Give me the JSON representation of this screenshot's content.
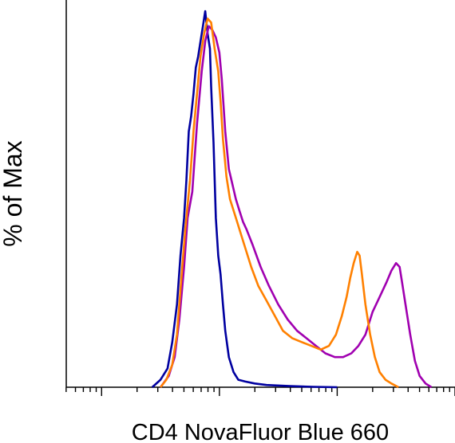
{
  "chart_data": {
    "type": "line",
    "xlabel": "CD4 NovaFluor Blue 660",
    "ylabel": "% of Max",
    "xscale": "log",
    "xticks_labeled": false,
    "yticks_labeled": false,
    "grid": false,
    "legend": "none",
    "series": [
      {
        "color": "#0000a0",
        "points": [
          [
            1.43,
            0
          ],
          [
            1.5,
            2
          ],
          [
            1.56,
            5
          ],
          [
            1.6,
            12
          ],
          [
            1.64,
            22
          ],
          [
            1.67,
            35
          ],
          [
            1.7,
            45
          ],
          [
            1.72,
            55
          ],
          [
            1.74,
            68
          ],
          [
            1.76,
            72
          ],
          [
            1.78,
            78
          ],
          [
            1.8,
            85
          ],
          [
            1.82,
            88
          ],
          [
            1.84,
            92
          ],
          [
            1.86,
            96
          ],
          [
            1.88,
            100
          ],
          [
            1.89,
            97
          ],
          [
            1.9,
            94
          ],
          [
            1.92,
            90
          ],
          [
            1.93,
            80
          ],
          [
            1.95,
            65
          ],
          [
            1.97,
            45
          ],
          [
            1.99,
            35
          ],
          [
            2.01,
            30
          ],
          [
            2.03,
            22
          ],
          [
            2.05,
            15
          ],
          [
            2.08,
            8
          ],
          [
            2.12,
            4
          ],
          [
            2.16,
            2
          ],
          [
            2.22,
            1.5
          ],
          [
            2.3,
            1
          ],
          [
            2.4,
            0.6
          ],
          [
            2.6,
            0.3
          ],
          [
            2.8,
            0.1
          ],
          [
            3.0,
            0
          ]
        ]
      },
      {
        "color": "#a000b0",
        "points": [
          [
            1.5,
            0
          ],
          [
            1.57,
            3
          ],
          [
            1.62,
            8
          ],
          [
            1.66,
            18
          ],
          [
            1.7,
            32
          ],
          [
            1.73,
            45
          ],
          [
            1.77,
            52
          ],
          [
            1.81,
            70
          ],
          [
            1.85,
            84
          ],
          [
            1.88,
            92
          ],
          [
            1.91,
            96
          ],
          [
            1.94,
            95
          ],
          [
            1.97,
            93
          ],
          [
            2.0,
            89
          ],
          [
            2.02,
            82
          ],
          [
            2.05,
            68
          ],
          [
            2.08,
            58
          ],
          [
            2.11,
            54
          ],
          [
            2.14,
            50
          ],
          [
            2.17,
            47
          ],
          [
            2.2,
            44
          ],
          [
            2.23,
            42
          ],
          [
            2.28,
            38
          ],
          [
            2.35,
            32
          ],
          [
            2.42,
            27
          ],
          [
            2.5,
            22
          ],
          [
            2.58,
            18
          ],
          [
            2.66,
            15
          ],
          [
            2.74,
            13
          ],
          [
            2.82,
            11
          ],
          [
            2.9,
            9
          ],
          [
            2.98,
            8
          ],
          [
            3.05,
            8
          ],
          [
            3.12,
            9
          ],
          [
            3.18,
            11
          ],
          [
            3.24,
            14
          ],
          [
            3.3,
            20
          ],
          [
            3.36,
            24
          ],
          [
            3.42,
            28
          ],
          [
            3.46,
            31
          ],
          [
            3.5,
            33
          ],
          [
            3.53,
            32
          ],
          [
            3.55,
            28
          ],
          [
            3.58,
            22
          ],
          [
            3.62,
            14
          ],
          [
            3.66,
            7
          ],
          [
            3.7,
            3
          ],
          [
            3.75,
            1
          ],
          [
            3.8,
            0
          ]
        ]
      },
      {
        "color": "#ff8000",
        "points": [
          [
            1.5,
            0
          ],
          [
            1.55,
            2
          ],
          [
            1.6,
            6
          ],
          [
            1.64,
            14
          ],
          [
            1.67,
            26
          ],
          [
            1.71,
            42
          ],
          [
            1.75,
            55
          ],
          [
            1.78,
            68
          ],
          [
            1.81,
            78
          ],
          [
            1.84,
            88
          ],
          [
            1.87,
            94
          ],
          [
            1.9,
            98
          ],
          [
            1.93,
            97
          ],
          [
            1.96,
            90
          ],
          [
            1.99,
            84
          ],
          [
            2.01,
            76
          ],
          [
            2.03,
            66
          ],
          [
            2.06,
            56
          ],
          [
            2.09,
            50
          ],
          [
            2.12,
            47
          ],
          [
            2.15,
            44
          ],
          [
            2.18,
            41
          ],
          [
            2.22,
            37
          ],
          [
            2.27,
            32
          ],
          [
            2.33,
            27
          ],
          [
            2.4,
            23
          ],
          [
            2.47,
            19
          ],
          [
            2.54,
            15
          ],
          [
            2.62,
            13
          ],
          [
            2.7,
            12
          ],
          [
            2.78,
            11
          ],
          [
            2.86,
            10
          ],
          [
            2.93,
            11
          ],
          [
            2.99,
            14
          ],
          [
            3.04,
            19
          ],
          [
            3.08,
            24
          ],
          [
            3.11,
            29
          ],
          [
            3.14,
            33
          ],
          [
            3.17,
            36
          ],
          [
            3.19,
            35
          ],
          [
            3.21,
            30
          ],
          [
            3.24,
            22
          ],
          [
            3.28,
            14
          ],
          [
            3.32,
            8
          ],
          [
            3.36,
            4
          ],
          [
            3.41,
            2
          ],
          [
            3.46,
            1
          ],
          [
            3.52,
            0
          ]
        ]
      }
    ]
  }
}
